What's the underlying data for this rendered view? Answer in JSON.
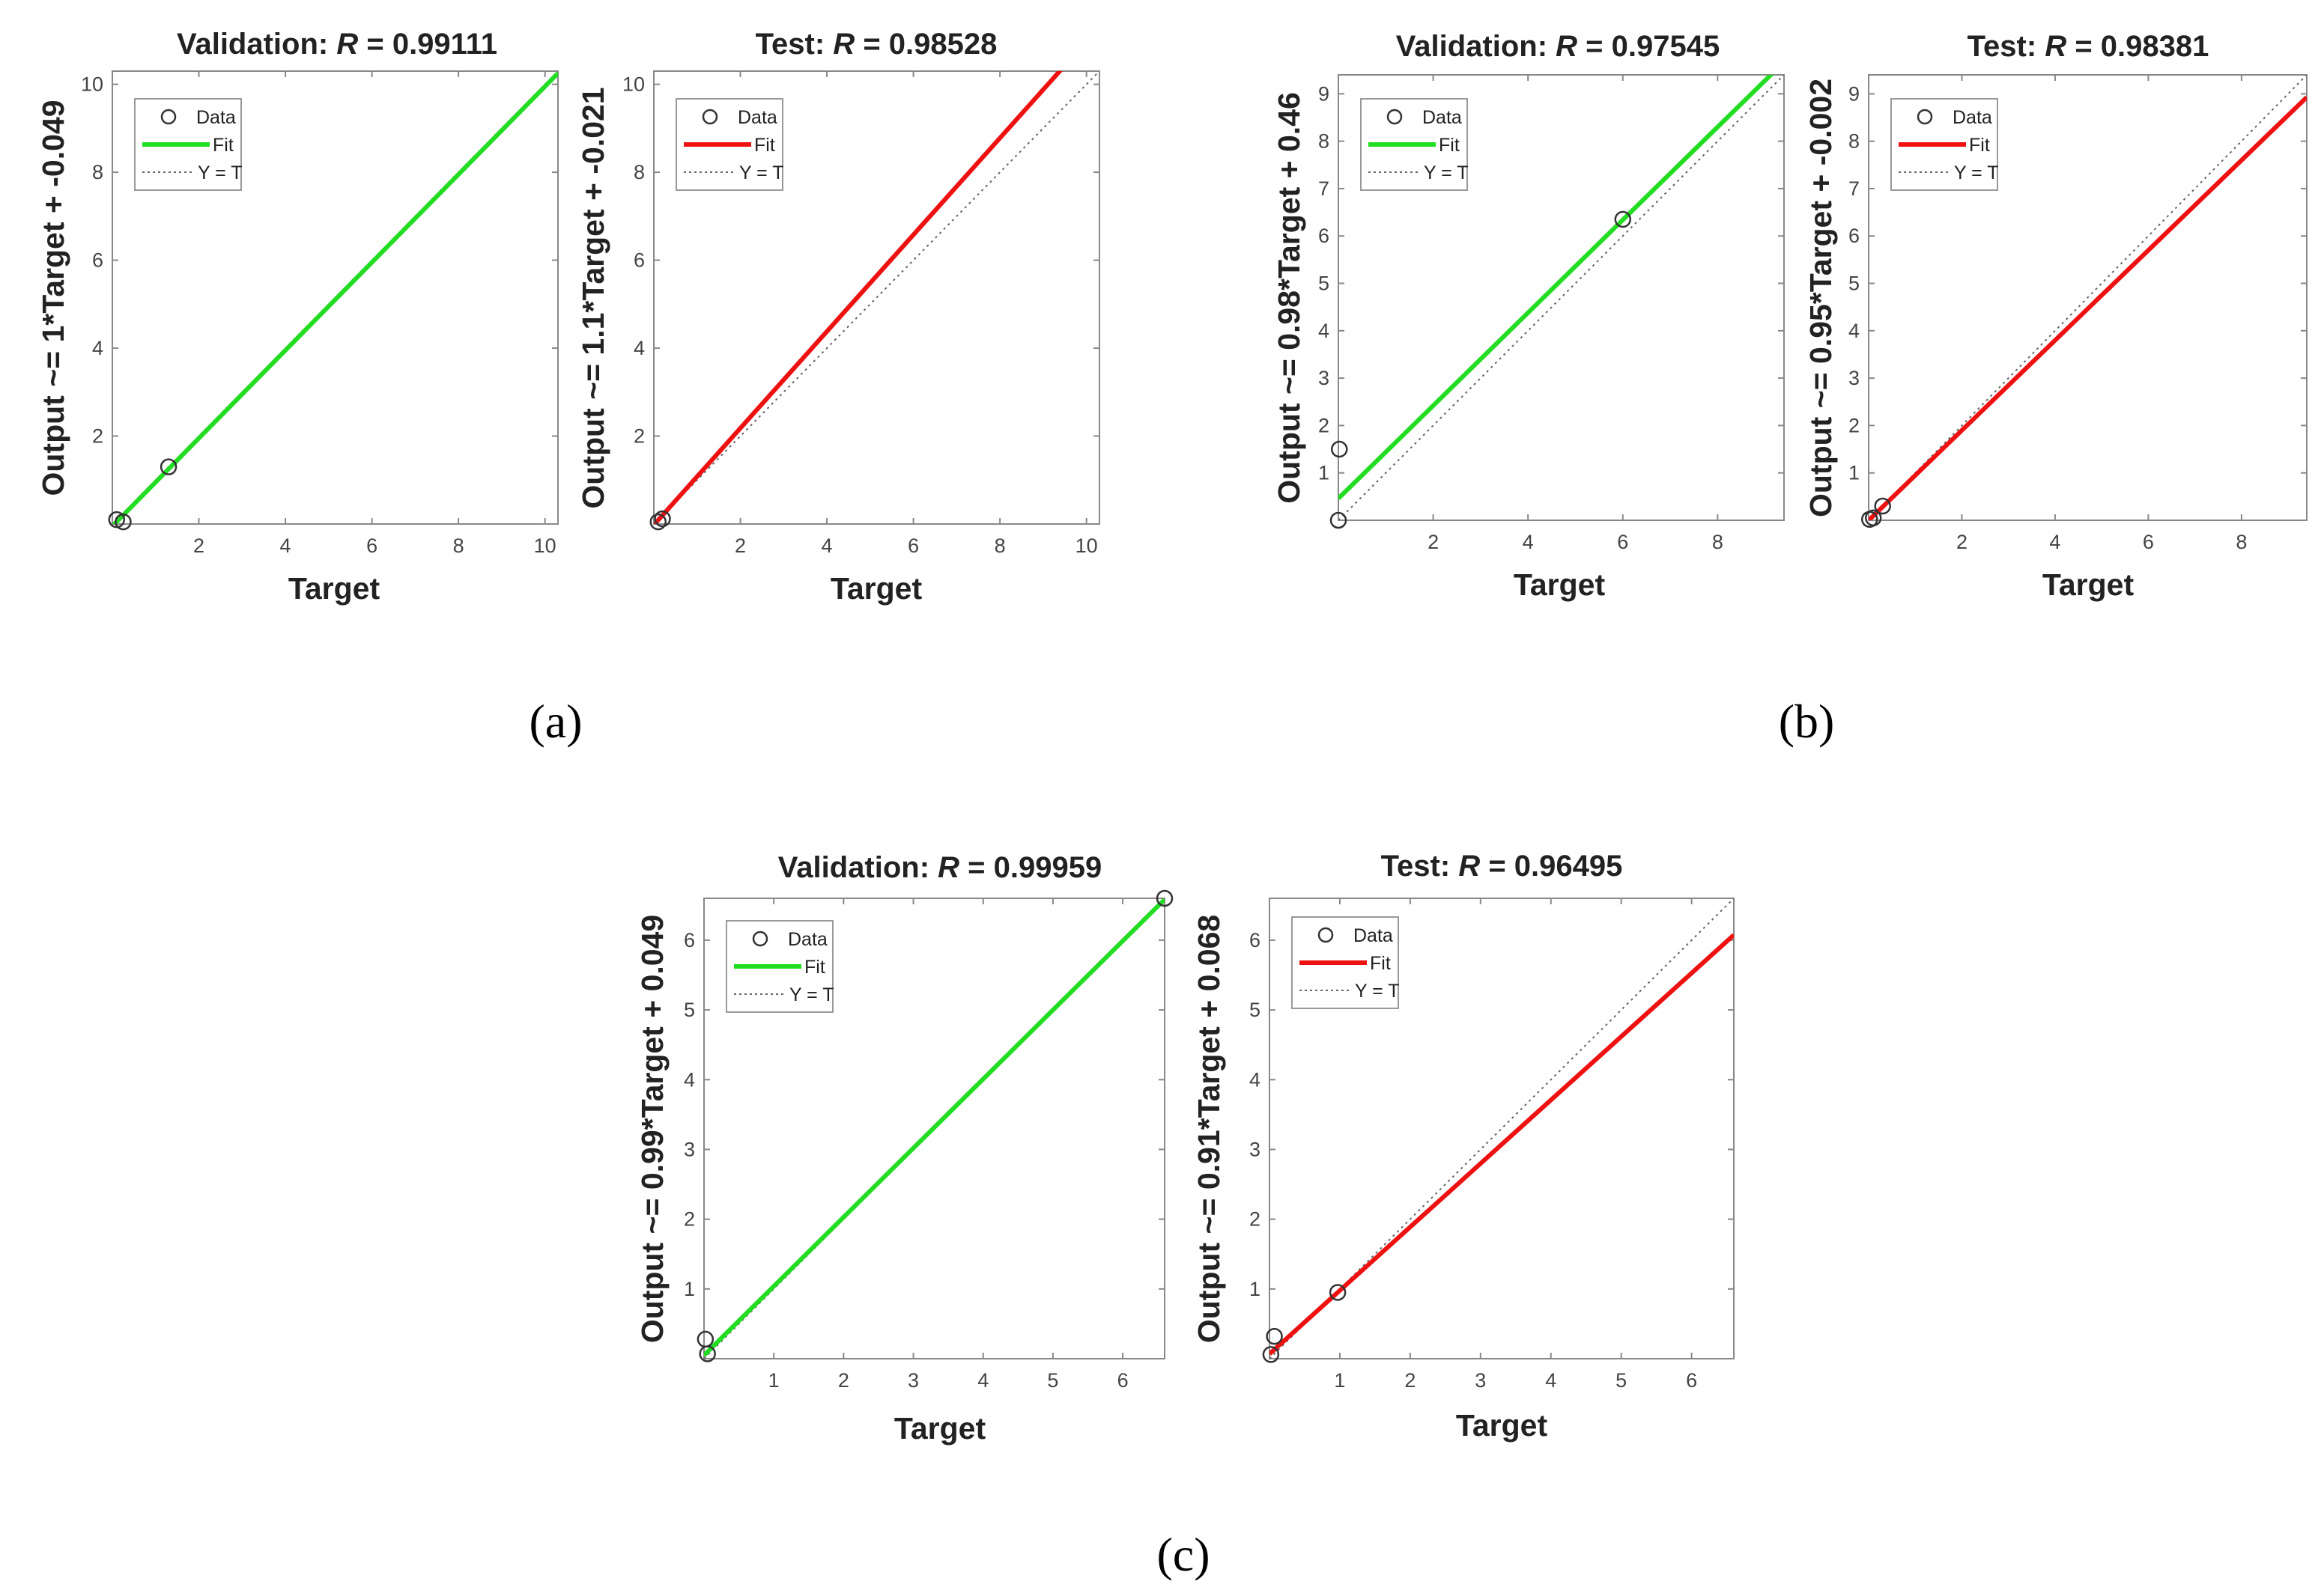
{
  "figure": {
    "captions": [
      "(a)",
      "(b)",
      "(c)"
    ]
  },
  "legend_labels": {
    "data": "Data",
    "fit": "Fit",
    "identity": "Y = T"
  },
  "colors": {
    "validation_fit": "#22dd22",
    "test_fit": "#ee1111",
    "identity": "#666666",
    "marker": "#333333",
    "axes": "#888888"
  },
  "chart_data": [
    {
      "type": "scatter",
      "group": "a",
      "title_prefix": "Validation: ",
      "title_r": "R",
      "title_value": " = 0.99111",
      "xlabel": "Target",
      "ylabel": "Output ~= 1*Target + -0.049",
      "xlim": [
        0,
        10.3
      ],
      "ylim": [
        0,
        10.3
      ],
      "xticks": [
        2,
        4,
        6,
        8,
        10
      ],
      "yticks": [
        2,
        4,
        6,
        8,
        10
      ],
      "fit": {
        "slope": 1,
        "intercept": -0.049,
        "color": "validation"
      },
      "points": [
        [
          0.1,
          0.1
        ],
        [
          0.25,
          0.05
        ],
        [
          1.3,
          1.3
        ]
      ]
    },
    {
      "type": "scatter",
      "group": "a",
      "title_prefix": "Test: ",
      "title_r": "R",
      "title_value": " = 0.98528",
      "xlabel": "Target",
      "ylabel": "Output ~= 1.1*Target + -0.021",
      "xlim": [
        0,
        10.3
      ],
      "ylim": [
        0,
        10.3
      ],
      "xticks": [
        2,
        4,
        6,
        8,
        10
      ],
      "yticks": [
        2,
        4,
        6,
        8,
        10
      ],
      "fit": {
        "slope": 1.1,
        "intercept": -0.021,
        "color": "test"
      },
      "points": [
        [
          0.1,
          0.05
        ],
        [
          0.2,
          0.12
        ]
      ]
    },
    {
      "type": "scatter",
      "group": "b",
      "title_prefix": "Validation: ",
      "title_r": "R",
      "title_value": " = 0.97545",
      "xlabel": "Target",
      "ylabel": "Output ~= 0.98*Target + 0.46",
      "xlim": [
        0,
        9.4
      ],
      "ylim": [
        0,
        9.4
      ],
      "xticks": [
        2,
        4,
        6,
        8
      ],
      "yticks": [
        1,
        2,
        3,
        4,
        5,
        6,
        7,
        8,
        9
      ],
      "fit": {
        "slope": 0.98,
        "intercept": 0.46,
        "color": "validation"
      },
      "points": [
        [
          0,
          0
        ],
        [
          0.02,
          1.5
        ],
        [
          6,
          6.35
        ]
      ]
    },
    {
      "type": "scatter",
      "group": "b",
      "title_prefix": "Test: ",
      "title_r": "R",
      "title_value": " = 0.98381",
      "xlabel": "Target",
      "ylabel": "Output ~= 0.95*Target + -0.002",
      "xlim": [
        0,
        9.4
      ],
      "ylim": [
        0,
        9.4
      ],
      "xticks": [
        2,
        4,
        6,
        8
      ],
      "yticks": [
        1,
        2,
        3,
        4,
        5,
        6,
        7,
        8,
        9
      ],
      "fit": {
        "slope": 0.95,
        "intercept": -0.002,
        "color": "test"
      },
      "points": [
        [
          0.02,
          0.02
        ],
        [
          0.1,
          0.05
        ],
        [
          0.3,
          0.3
        ]
      ]
    },
    {
      "type": "scatter",
      "group": "c",
      "title_prefix": "Validation: ",
      "title_r": "R",
      "title_value": " = 0.99959",
      "xlabel": "Target",
      "ylabel": "Output ~= 0.99*Target + 0.049",
      "xlim": [
        0,
        6.6
      ],
      "ylim": [
        0,
        6.6
      ],
      "xticks": [
        1,
        2,
        3,
        4,
        5,
        6
      ],
      "yticks": [
        1,
        2,
        3,
        4,
        5,
        6
      ],
      "fit": {
        "slope": 0.99,
        "intercept": 0.049,
        "color": "validation"
      },
      "points": [
        [
          0.02,
          0.28
        ],
        [
          0.05,
          0.07
        ],
        [
          6.6,
          6.6
        ]
      ]
    },
    {
      "type": "scatter",
      "group": "c",
      "title_prefix": "Test: ",
      "title_r": "R",
      "title_value": " = 0.96495",
      "xlabel": "Target",
      "ylabel": "Output ~= 0.91*Target + 0.068",
      "xlim": [
        0,
        6.6
      ],
      "ylim": [
        0,
        6.6
      ],
      "xticks": [
        1,
        2,
        3,
        4,
        5,
        6
      ],
      "yticks": [
        1,
        2,
        3,
        4,
        5,
        6
      ],
      "fit": {
        "slope": 0.91,
        "intercept": 0.068,
        "color": "test"
      },
      "points": [
        [
          0.02,
          0.06
        ],
        [
          0.07,
          0.32
        ],
        [
          0.97,
          0.95
        ]
      ]
    }
  ]
}
